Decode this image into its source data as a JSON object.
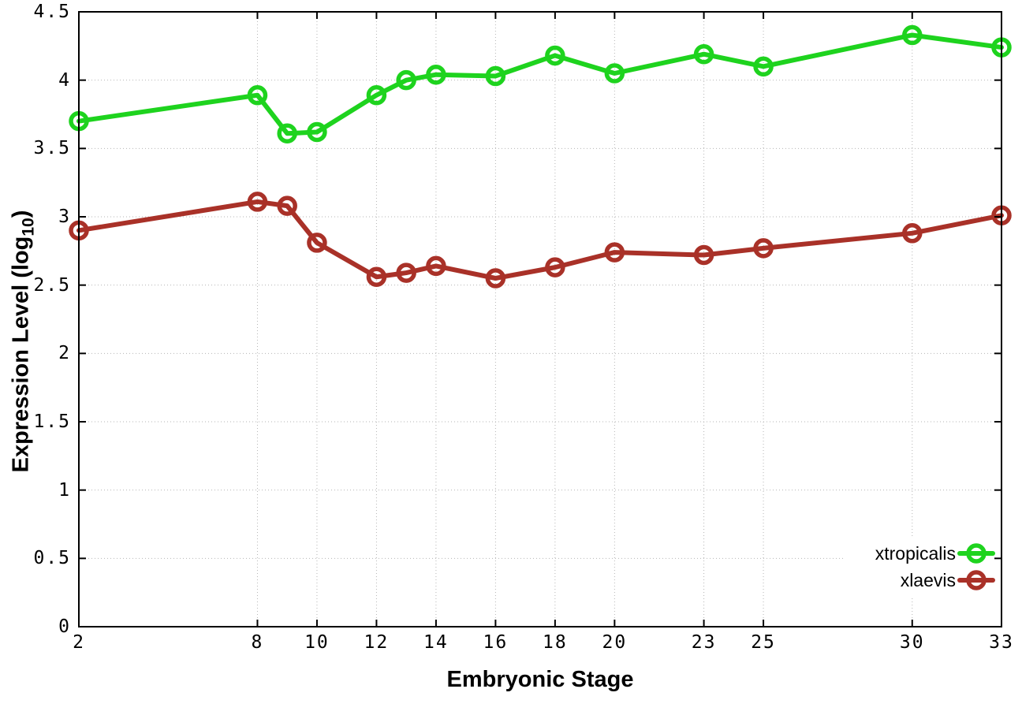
{
  "chart_data": {
    "type": "line",
    "title": "",
    "xlabel": "Embryonic Stage",
    "ylabel": "Expression Level (log10)",
    "ylabel_parts": {
      "main": "Expression Level (log",
      "sub": "10",
      "close": ")"
    },
    "xlim": [
      2,
      33
    ],
    "ylim": [
      0,
      4.5
    ],
    "x_ticks": [
      2,
      8,
      10,
      12,
      14,
      16,
      18,
      20,
      23,
      25,
      30,
      33
    ],
    "y_ticks": [
      0,
      0.5,
      1,
      1.5,
      2,
      2.5,
      3,
      3.5,
      4,
      4.5
    ],
    "grid": "dotted-both-axes",
    "legend_position": "inside-bottom-right",
    "x": [
      2,
      8,
      9,
      10,
      12,
      13,
      14,
      16,
      18,
      20,
      23,
      25,
      30,
      33
    ],
    "series": [
      {
        "name": "xtropicalis",
        "color": "#1ed31e",
        "values": [
          3.7,
          3.89,
          3.61,
          3.62,
          3.89,
          4.0,
          4.04,
          4.03,
          4.18,
          4.05,
          4.19,
          4.1,
          4.33,
          4.24
        ]
      },
      {
        "name": "xlaevis",
        "color": "#a93128",
        "values": [
          2.9,
          3.11,
          3.08,
          2.81,
          2.56,
          2.59,
          2.64,
          2.55,
          2.63,
          2.74,
          2.72,
          2.77,
          2.88,
          3.01
        ]
      }
    ],
    "marker": "open-circle"
  },
  "colors": {
    "background": "#ffffff",
    "plot_border": "#000000",
    "grid": "#b5b5b5",
    "tick_text": "#000000"
  }
}
